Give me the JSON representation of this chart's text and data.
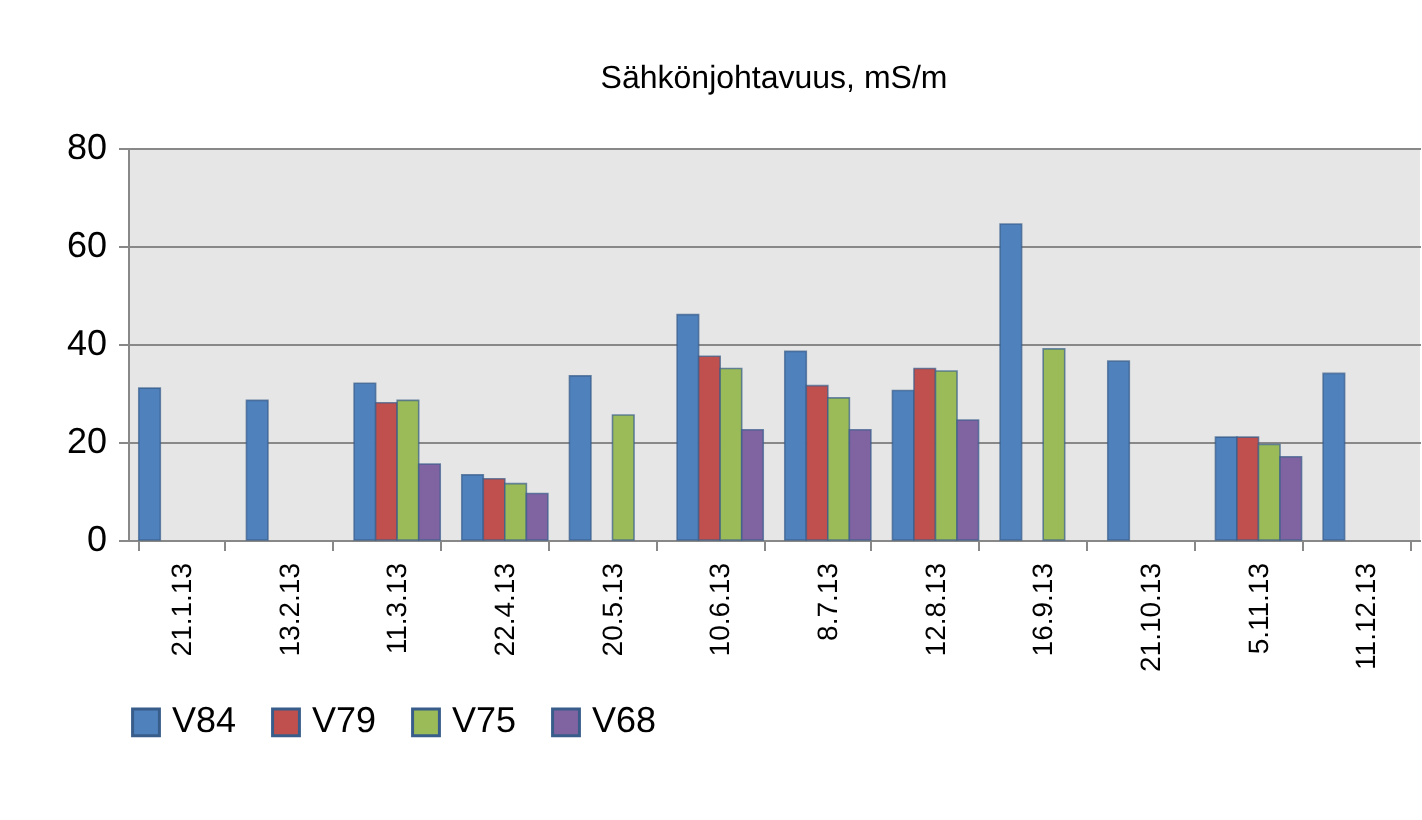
{
  "chart_data": {
    "type": "bar",
    "title": "Sähkönjohtavuus, mS/m",
    "categories": [
      "21.1.13",
      "13.2.13",
      "11.3.13",
      "22.4.13",
      "20.5.13",
      "10.6.13",
      "8.7.13",
      "12.8.13",
      "16.9.13",
      "21.10.13",
      "5.11.13",
      "11.12.13"
    ],
    "series": [
      {
        "name": "V84",
        "color": "#4f81bd",
        "values": [
          31,
          28.5,
          32,
          13.3,
          33.5,
          46,
          38.5,
          30.5,
          64.5,
          36.5,
          21,
          34
        ]
      },
      {
        "name": "V79",
        "color": "#c0504d",
        "values": [
          null,
          null,
          28,
          12.5,
          null,
          37.5,
          31.5,
          35,
          null,
          null,
          21,
          null
        ]
      },
      {
        "name": "V75",
        "color": "#9bbb59",
        "values": [
          null,
          null,
          28.5,
          11.5,
          25.5,
          35,
          29,
          34.5,
          39,
          null,
          19.5,
          null
        ]
      },
      {
        "name": "V68",
        "color": "#8064a2",
        "values": [
          null,
          null,
          15.5,
          9.5,
          null,
          22.5,
          22.5,
          24.5,
          null,
          null,
          17,
          null
        ]
      }
    ],
    "ylim": [
      0,
      80
    ],
    "yticks": [
      0,
      20,
      40,
      60,
      80
    ],
    "grid": "y",
    "legend": "bottom"
  }
}
